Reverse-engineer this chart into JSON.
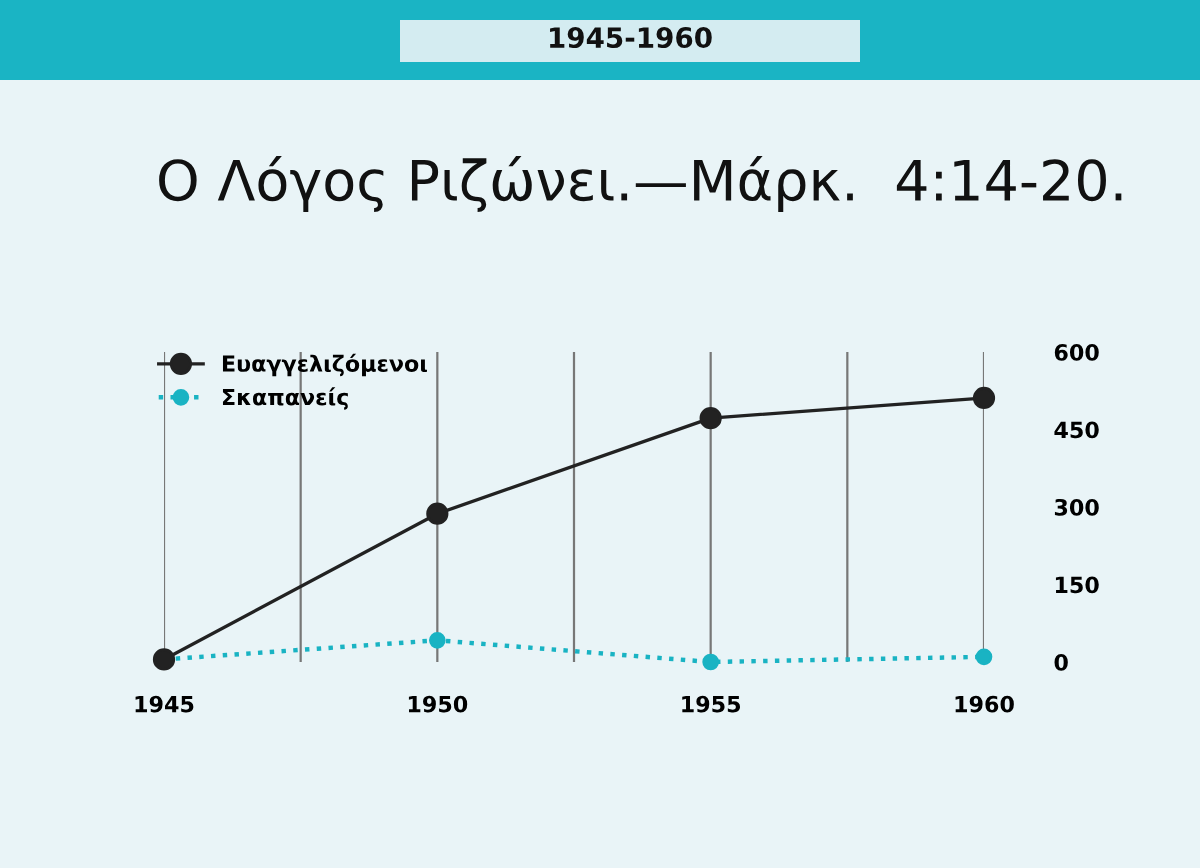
{
  "chart_data": {
    "type": "line",
    "title": "Ο Λόγος Ριζώνει.—Μάρκ.  4:14-20.",
    "annotations": [
      "1945-1960"
    ],
    "x": [
      1945,
      1950,
      1955,
      1960
    ],
    "series": [
      {
        "name": "Ευαγγελιζόμενοι",
        "color": "#222222",
        "values": [
          5,
          287,
          472,
          511
        ],
        "line_style": "solid"
      },
      {
        "name": "Σκαπανείς",
        "color": "#19b3c3",
        "values": [
          5,
          42,
          0,
          10
        ],
        "line_style": "dotted"
      }
    ],
    "xlim": [
      1945,
      1960
    ],
    "xticks": [
      1945,
      {
        "value": 1947.5,
        "label": null
      },
      1950,
      {
        "value": 1952.5,
        "label": null
      },
      1955,
      {
        "value": 1957.5,
        "label": null
      },
      1960
    ],
    "ylim": [
      0,
      600
    ],
    "yticks": [
      0,
      150,
      300,
      450,
      600
    ],
    "grid": "x",
    "legend": "top left",
    "marker": "circle"
  }
}
